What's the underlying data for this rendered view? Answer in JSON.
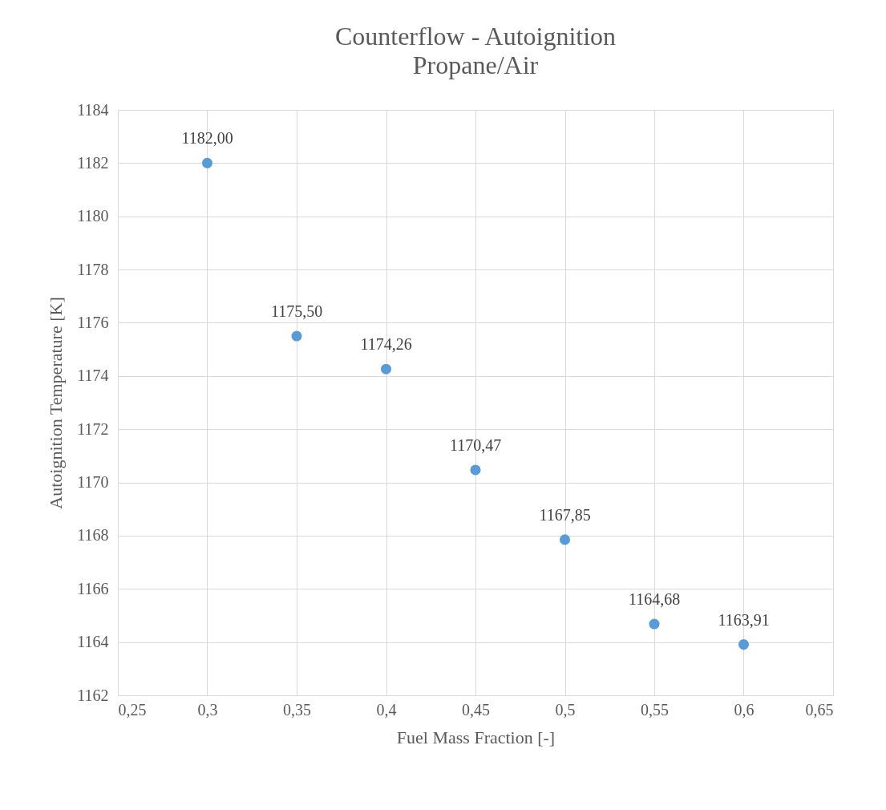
{
  "chart_data": {
    "type": "scatter",
    "title": "Counterflow - Autoignition",
    "subtitle": "Propane/Air",
    "xlabel": "Fuel Mass Fraction [-]",
    "ylabel": "Autoignition Temperature [K]",
    "x": [
      0.3,
      0.35,
      0.4,
      0.45,
      0.5,
      0.55,
      0.6
    ],
    "series": [
      {
        "color": "#5b9bd5",
        "values": [
          1182.0,
          1175.5,
          1174.26,
          1170.47,
          1167.85,
          1164.68,
          1163.91
        ],
        "value_labels": [
          "1182,00",
          "1175,50",
          "1174,26",
          "1170,47",
          "1167,85",
          "1164,68",
          "1163,91"
        ]
      }
    ],
    "xlim": [
      0.25,
      0.65
    ],
    "xticks": [
      {
        "value": 0.25,
        "label": "0,25"
      },
      {
        "value": 0.3,
        "label": "0,3"
      },
      {
        "value": 0.35,
        "label": "0,35"
      },
      {
        "value": 0.4,
        "label": "0,4"
      },
      {
        "value": 0.45,
        "label": "0,45"
      },
      {
        "value": 0.5,
        "label": "0,5"
      },
      {
        "value": 0.55,
        "label": "0,55"
      },
      {
        "value": 0.6,
        "label": "0,6"
      },
      {
        "value": 0.65,
        "label": "0,65"
      }
    ],
    "ylim": [
      1162,
      1184
    ],
    "yticks": [
      1162,
      1164,
      1166,
      1168,
      1170,
      1172,
      1174,
      1176,
      1178,
      1180,
      1182,
      1184
    ],
    "grid": true,
    "marker": "circle"
  }
}
